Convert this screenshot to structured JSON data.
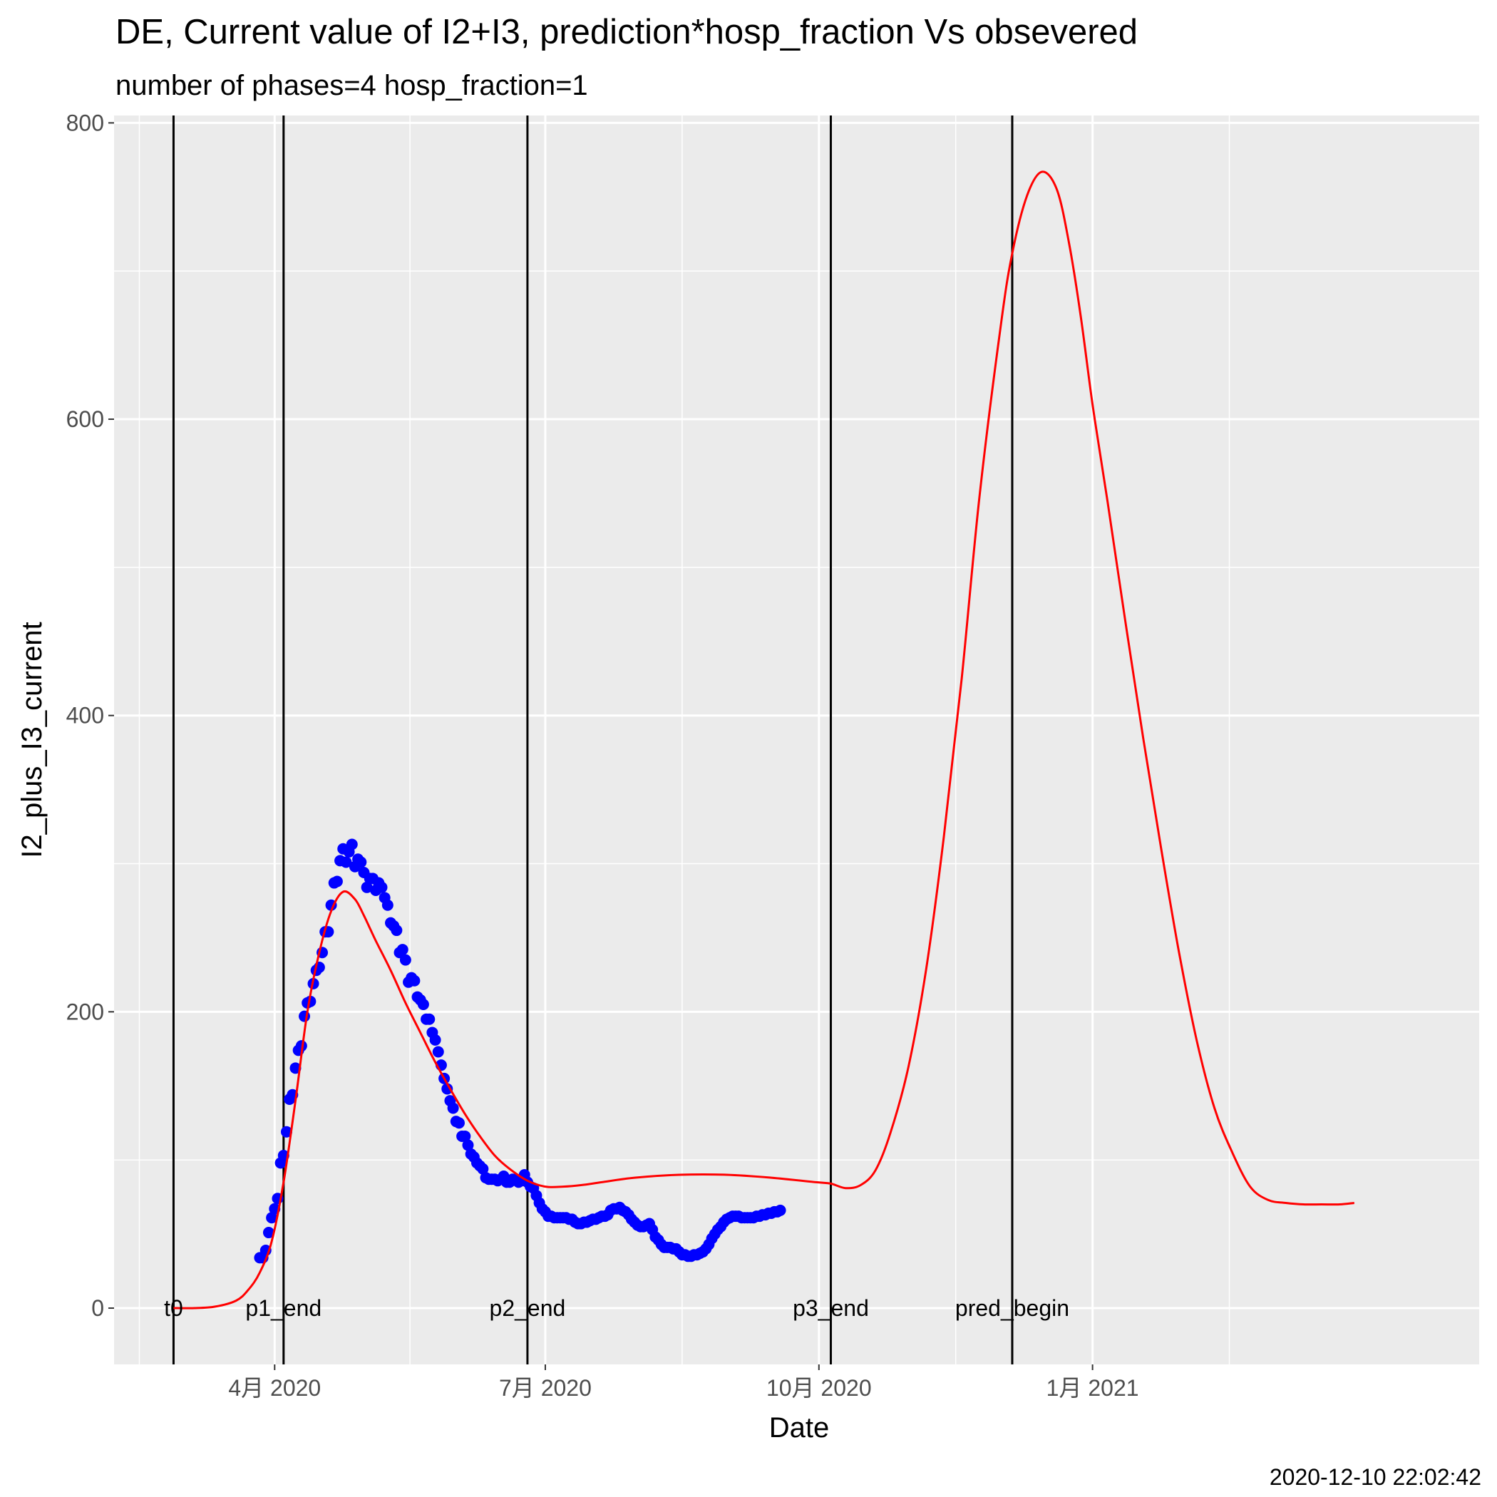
{
  "chart_data": {
    "type": "line",
    "title": "DE, Current value of I2+I3, prediction*hosp_fraction Vs obsevered",
    "subtitle": "number of phases=4   hosp_fraction=1",
    "xlabel": "Date",
    "ylabel": "I2_plus_I3_current",
    "caption": "2020-12-10 22:02:42",
    "xlim": [
      "2020-02-07",
      "2021-05-11"
    ],
    "ylim": [
      -38,
      805
    ],
    "x_ticks": [
      {
        "date": "2020-04-01",
        "label": "4月 2020"
      },
      {
        "date": "2020-07-01",
        "label": "7月 2020"
      },
      {
        "date": "2020-10-01",
        "label": "10月 2020"
      },
      {
        "date": "2021-01-01",
        "label": "1月 2021"
      }
    ],
    "y_ticks": [
      0,
      200,
      400,
      600,
      800
    ],
    "grid": true,
    "colors": {
      "panel": "#ebebeb",
      "grid": "#ffffff",
      "observed": "#0000ff",
      "predicted": "#ff0000",
      "vline": "#000000"
    },
    "vlines": [
      {
        "date": "2020-02-27",
        "label": "t0"
      },
      {
        "date": "2020-04-04",
        "label": "p1_end"
      },
      {
        "date": "2020-06-25",
        "label": "p2_end"
      },
      {
        "date": "2020-10-05",
        "label": "p3_end"
      },
      {
        "date": "2020-12-05",
        "label": "pred_begin"
      }
    ],
    "series": [
      {
        "kind": "points",
        "x": [
          "2020-03-27",
          "2020-03-28",
          "2020-03-29",
          "2020-03-30",
          "2020-03-31",
          "2020-04-01",
          "2020-04-02",
          "2020-04-03",
          "2020-04-04",
          "2020-04-05",
          "2020-04-06",
          "2020-04-07",
          "2020-04-08",
          "2020-04-09",
          "2020-04-10",
          "2020-04-11",
          "2020-04-12",
          "2020-04-13",
          "2020-04-14",
          "2020-04-15",
          "2020-04-16",
          "2020-04-17",
          "2020-04-18",
          "2020-04-19",
          "2020-04-20",
          "2020-04-21",
          "2020-04-22",
          "2020-04-23",
          "2020-04-24",
          "2020-04-25",
          "2020-04-26",
          "2020-04-27",
          "2020-04-28",
          "2020-04-29",
          "2020-04-30",
          "2020-05-01",
          "2020-05-02",
          "2020-05-03",
          "2020-05-04",
          "2020-05-05",
          "2020-05-06",
          "2020-05-07",
          "2020-05-08",
          "2020-05-09",
          "2020-05-10",
          "2020-05-11",
          "2020-05-12",
          "2020-05-13",
          "2020-05-14",
          "2020-05-15",
          "2020-05-16",
          "2020-05-17",
          "2020-05-18",
          "2020-05-19",
          "2020-05-20",
          "2020-05-21",
          "2020-05-22",
          "2020-05-23",
          "2020-05-24",
          "2020-05-25",
          "2020-05-26",
          "2020-05-27",
          "2020-05-28",
          "2020-05-29",
          "2020-05-30",
          "2020-05-31",
          "2020-06-01",
          "2020-06-02",
          "2020-06-03",
          "2020-06-04",
          "2020-06-05",
          "2020-06-06",
          "2020-06-07",
          "2020-06-08",
          "2020-06-09",
          "2020-06-10",
          "2020-06-11",
          "2020-06-12",
          "2020-06-13",
          "2020-06-14",
          "2020-06-15",
          "2020-06-16",
          "2020-06-17",
          "2020-06-18",
          "2020-06-19",
          "2020-06-20",
          "2020-06-21",
          "2020-06-22",
          "2020-06-23",
          "2020-06-24",
          "2020-06-25",
          "2020-06-26",
          "2020-06-27",
          "2020-06-28",
          "2020-06-29",
          "2020-06-30",
          "2020-07-01",
          "2020-07-02",
          "2020-07-03",
          "2020-07-04",
          "2020-07-05",
          "2020-07-06",
          "2020-07-07",
          "2020-07-08",
          "2020-07-09",
          "2020-07-10",
          "2020-07-11",
          "2020-07-12",
          "2020-07-13",
          "2020-07-14",
          "2020-07-15",
          "2020-07-16",
          "2020-07-17",
          "2020-07-18",
          "2020-07-19",
          "2020-07-20",
          "2020-07-21",
          "2020-07-22",
          "2020-07-23",
          "2020-07-24",
          "2020-07-25",
          "2020-07-26",
          "2020-07-27",
          "2020-07-28",
          "2020-07-29",
          "2020-07-30",
          "2020-07-31",
          "2020-08-01",
          "2020-08-02",
          "2020-08-03",
          "2020-08-04",
          "2020-08-05",
          "2020-08-06",
          "2020-08-07",
          "2020-08-08",
          "2020-08-09",
          "2020-08-10",
          "2020-08-11",
          "2020-08-12",
          "2020-08-13",
          "2020-08-14",
          "2020-08-15",
          "2020-08-16",
          "2020-08-17",
          "2020-08-18",
          "2020-08-19",
          "2020-08-20",
          "2020-08-21",
          "2020-08-22",
          "2020-08-23",
          "2020-08-24",
          "2020-08-25",
          "2020-08-26",
          "2020-08-27",
          "2020-08-28",
          "2020-08-29",
          "2020-08-30",
          "2020-08-31",
          "2020-09-01",
          "2020-09-02",
          "2020-09-03",
          "2020-09-04",
          "2020-09-05",
          "2020-09-06",
          "2020-09-07",
          "2020-09-08",
          "2020-09-09",
          "2020-09-10",
          "2020-09-11",
          "2020-09-12",
          "2020-09-13",
          "2020-09-14",
          "2020-09-15",
          "2020-09-16",
          "2020-09-17",
          "2020-09-18"
        ],
        "y": [
          34,
          34,
          39,
          51,
          61,
          67,
          74,
          98,
          103,
          119,
          141,
          144,
          162,
          174,
          177,
          197,
          206,
          207,
          219,
          228,
          230,
          240,
          254,
          254,
          272,
          287,
          288,
          302,
          310,
          301,
          308,
          313,
          298,
          303,
          301,
          294,
          284,
          290,
          290,
          282,
          287,
          284,
          277,
          272,
          260,
          258,
          255,
          240,
          242,
          235,
          220,
          223,
          221,
          210,
          208,
          205,
          195,
          195,
          186,
          181,
          173,
          164,
          155,
          148,
          140,
          135,
          126,
          125,
          116,
          116,
          110,
          104,
          102,
          98,
          96,
          94,
          88,
          87,
          87,
          87,
          86,
          87,
          89,
          85,
          85,
          87,
          87,
          85,
          86,
          90,
          85,
          82,
          81,
          76,
          71,
          67,
          65,
          62,
          62,
          61,
          61,
          61,
          61,
          61,
          60,
          60,
          58,
          57,
          57,
          58,
          58,
          59,
          60,
          60,
          61,
          62,
          62,
          63,
          66,
          67,
          67,
          68,
          66,
          65,
          63,
          60,
          58,
          56,
          55,
          55,
          56,
          57,
          53,
          48,
          46,
          43,
          41,
          41,
          41,
          40,
          40,
          38,
          36,
          36,
          35,
          35,
          36,
          36,
          37,
          38,
          40,
          43,
          47,
          50,
          53,
          55,
          58,
          60,
          61,
          62,
          62,
          62,
          61,
          61,
          61,
          61,
          61,
          62,
          62,
          63,
          63,
          64,
          64,
          65,
          65,
          66
        ]
      },
      {
        "kind": "line",
        "x": [
          "2020-02-27",
          "2020-03-05",
          "2020-03-12",
          "2020-03-19",
          "2020-03-23",
          "2020-03-27",
          "2020-03-31",
          "2020-04-04",
          "2020-04-08",
          "2020-04-12",
          "2020-04-16",
          "2020-04-20",
          "2020-04-24",
          "2020-04-28",
          "2020-05-01",
          "2020-05-05",
          "2020-05-10",
          "2020-05-15",
          "2020-05-20",
          "2020-05-25",
          "2020-05-30",
          "2020-06-04",
          "2020-06-09",
          "2020-06-14",
          "2020-06-19",
          "2020-06-25",
          "2020-07-01",
          "2020-07-07",
          "2020-07-13",
          "2020-07-20",
          "2020-07-31",
          "2020-08-15",
          "2020-08-31",
          "2020-09-15",
          "2020-09-30",
          "2020-10-05",
          "2020-10-10",
          "2020-10-15",
          "2020-10-20",
          "2020-10-25",
          "2020-10-31",
          "2020-11-06",
          "2020-11-12",
          "2020-11-18",
          "2020-11-24",
          "2020-12-01",
          "2020-12-05",
          "2020-12-10",
          "2020-12-15",
          "2020-12-20",
          "2020-12-24",
          "2020-12-28",
          "2021-01-01",
          "2021-01-06",
          "2021-01-12",
          "2021-01-18",
          "2021-01-24",
          "2021-01-30",
          "2021-02-05",
          "2021-02-11",
          "2021-02-17",
          "2021-02-23",
          "2021-03-01",
          "2021-03-07",
          "2021-03-13",
          "2021-03-19",
          "2021-03-25",
          "2021-03-30"
        ],
        "y": [
          0,
          0,
          1,
          5,
          12,
          24,
          45,
          85,
          140,
          200,
          240,
          268,
          281,
          276,
          265,
          248,
          228,
          206,
          186,
          166,
          148,
          131,
          116,
          103,
          94,
          86,
          82,
          82,
          83,
          85,
          88,
          90,
          90,
          88,
          85,
          84,
          81,
          83,
          93,
          118,
          162,
          228,
          318,
          425,
          548,
          661,
          712,
          751,
          767,
          755,
          720,
          670,
          610,
          545,
          464,
          385,
          311,
          241,
          181,
          135,
          105,
          82,
          73,
          71,
          70,
          70,
          70,
          71
        ]
      }
    ]
  }
}
